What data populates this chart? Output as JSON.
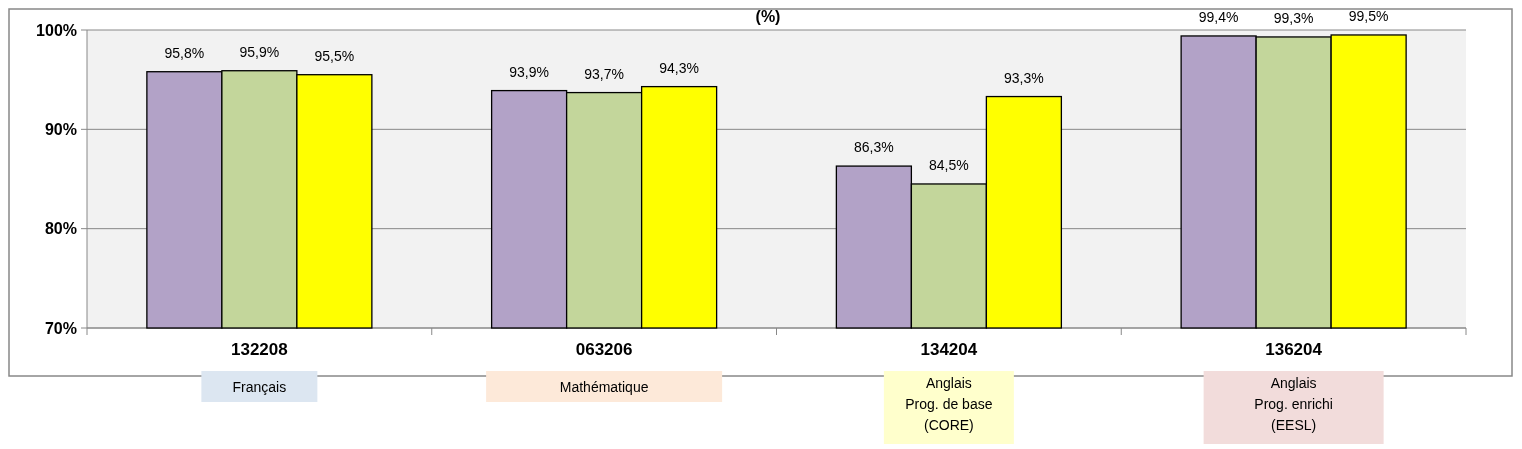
{
  "chart_data": {
    "type": "bar",
    "title": "(%)",
    "categories": [
      "132208",
      "063206",
      "134204",
      "136204"
    ],
    "series": [
      {
        "color": "#b2a2c7",
        "values": [
          95.8,
          93.9,
          86.3,
          99.4
        ],
        "value_labels": [
          "95,8%",
          "93,9%",
          "86,3%",
          "99,4%"
        ]
      },
      {
        "color": "#c3d69b",
        "values": [
          95.9,
          93.7,
          84.5,
          99.3
        ],
        "value_labels": [
          "95,9%",
          "93,7%",
          "84,5%",
          "99,3%"
        ]
      },
      {
        "color": "#ffff00",
        "values": [
          95.5,
          94.3,
          93.3,
          99.5
        ],
        "value_labels": [
          "95,5%",
          "94,3%",
          "93,3%",
          "99,5%"
        ]
      }
    ],
    "ylim": [
      70,
      100
    ],
    "yticks": [
      {
        "value": 70,
        "label": "70%"
      },
      {
        "value": 80,
        "label": "80%"
      },
      {
        "value": 90,
        "label": "90%"
      },
      {
        "value": 100,
        "label": "100%"
      }
    ],
    "grid": "y",
    "annotations": [
      "Français",
      "Mathématique",
      "Anglais\nProg. de base\n(CORE)",
      "Anglais\nProg. enrichi\n(EESL)"
    ]
  }
}
